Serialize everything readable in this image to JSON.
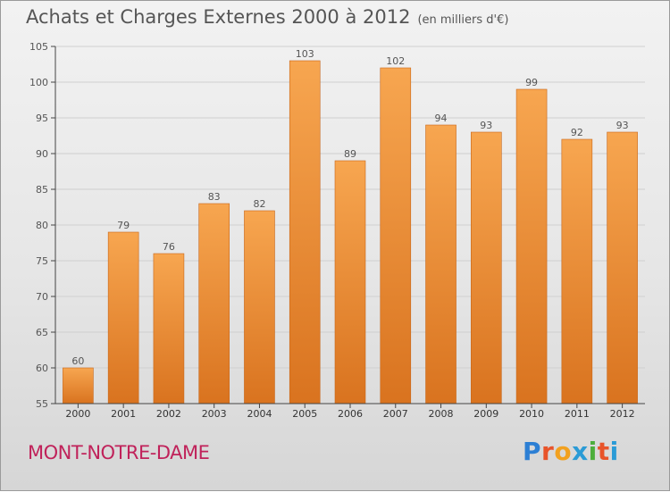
{
  "header": {
    "title": "Achats et Charges Externes 2000 à 2012",
    "unit": "(en milliers d'€)"
  },
  "footer": {
    "commune": "MONT-NOTRE-DAME",
    "logo_text": "Proxiti",
    "logo_colors": [
      "#2c7fd4",
      "#e8542a",
      "#f2a11f",
      "#2b9bd6",
      "#4cae3c",
      "#e8542a",
      "#2b9bd6"
    ]
  },
  "colors": {
    "bar_top": "#f7a650",
    "bar_bottom": "#d9731f",
    "text": "#555555",
    "axis": "#444444",
    "grid": "#cfcfcf"
  },
  "chart_data": {
    "type": "bar",
    "title": "Achats et Charges Externes 2000 à 2012",
    "subtitle": "(en milliers d'€)",
    "xlabel": "",
    "ylabel": "",
    "categories": [
      "2000",
      "2001",
      "2002",
      "2003",
      "2004",
      "2005",
      "2006",
      "2007",
      "2008",
      "2009",
      "2010",
      "2011",
      "2012"
    ],
    "values": [
      60,
      79,
      76,
      83,
      82,
      103,
      89,
      102,
      94,
      93,
      99,
      92,
      93
    ],
    "ylim": [
      55,
      105
    ],
    "yticks": [
      55,
      60,
      65,
      70,
      75,
      80,
      85,
      90,
      95,
      100,
      105
    ],
    "grid": true,
    "legend": "none"
  }
}
